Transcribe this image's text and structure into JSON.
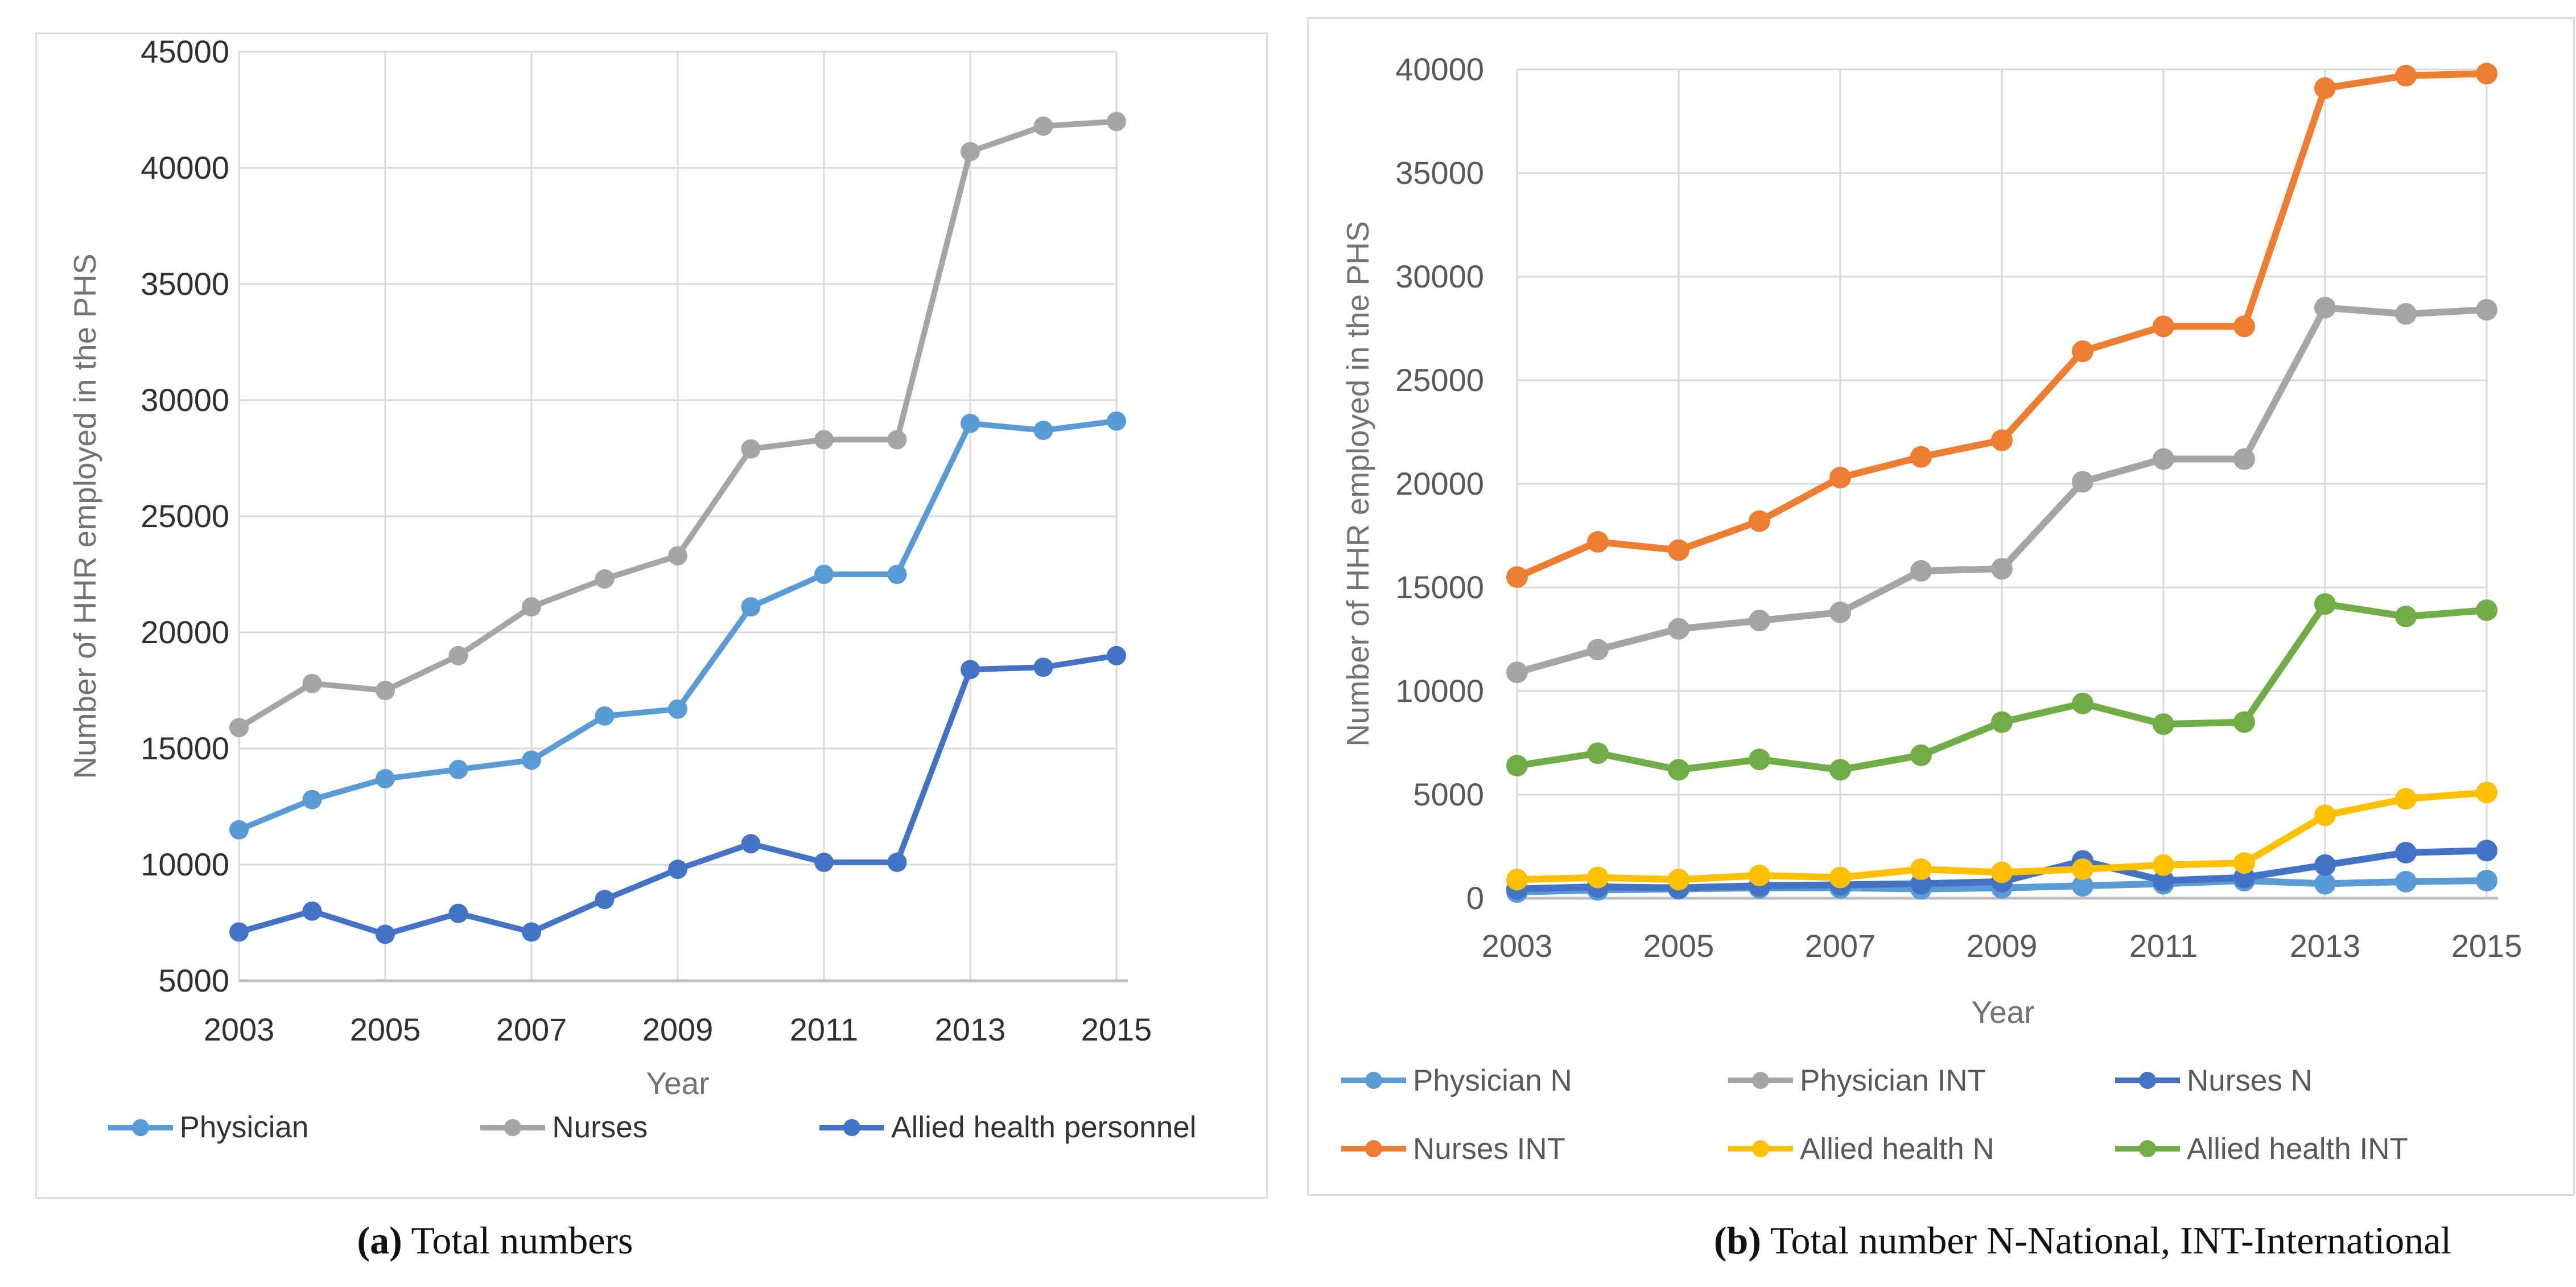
{
  "style": {
    "grid_color": "#D9D9D9",
    "axis_color": "#BFBFBF",
    "axis_title_color": "#757171",
    "tick_label_color_a": "#303030",
    "tick_label_color_b": "#595959",
    "legend_text_color_a": "#333333",
    "legend_text_color_b": "#595959"
  },
  "figure": {
    "captions": [
      {
        "prefix": "(a)",
        "text": " Total numbers"
      },
      {
        "prefix": "(b)",
        "text": " Total number N-National, INT-International"
      }
    ]
  },
  "chart_data": [
    {
      "type": "line",
      "title": "",
      "xlabel": "Year",
      "ylabel": "Number of HHR employed in the PHS",
      "x": [
        2003,
        2004,
        2005,
        2006,
        2007,
        2008,
        2009,
        2010,
        2011,
        2012,
        2013,
        2014,
        2015
      ],
      "x_ticks": [
        2003,
        2005,
        2007,
        2009,
        2011,
        2013,
        2015
      ],
      "ylim": [
        5000,
        45000
      ],
      "ytick_step": 5000,
      "grid": true,
      "legend_position": "bottom",
      "series": [
        {
          "name": "Physician",
          "color": "#5B9BD5",
          "values": [
            11500,
            12800,
            13700,
            14100,
            14500,
            16400,
            16700,
            21100,
            22500,
            22500,
            29000,
            28700,
            29100
          ]
        },
        {
          "name": "Nurses",
          "color": "#A5A5A5",
          "values": [
            15900,
            17800,
            17500,
            19000,
            21100,
            22300,
            23300,
            27900,
            28300,
            28300,
            40700,
            41800,
            42000
          ]
        },
        {
          "name": "Allied health personnel",
          "color": "#4472C4",
          "values": [
            7100,
            8000,
            7000,
            7900,
            7100,
            8500,
            9800,
            10900,
            10100,
            10100,
            18400,
            18500,
            19000
          ]
        }
      ]
    },
    {
      "type": "line",
      "title": "",
      "xlabel": "Year",
      "ylabel": "Number of HHR employed in the PHS",
      "x": [
        2003,
        2004,
        2005,
        2006,
        2007,
        2008,
        2009,
        2010,
        2011,
        2012,
        2013,
        2014,
        2015
      ],
      "x_ticks": [
        2003,
        2005,
        2007,
        2009,
        2011,
        2013,
        2015
      ],
      "ylim": [
        0,
        40000
      ],
      "ytick_step": 5000,
      "grid": true,
      "legend_position": "bottom",
      "series": [
        {
          "name": "Physician N",
          "color": "#5B9BD5",
          "values": [
            300,
            400,
            450,
            500,
            500,
            450,
            500,
            600,
            700,
            850,
            700,
            800,
            850
          ]
        },
        {
          "name": "Physician INT",
          "color": "#A5A5A5",
          "values": [
            10900,
            12000,
            13000,
            13400,
            13800,
            15800,
            15900,
            20100,
            21200,
            21200,
            28500,
            28200,
            28400
          ]
        },
        {
          "name": "Nurses N",
          "color": "#4472C4",
          "values": [
            450,
            550,
            500,
            600,
            650,
            700,
            800,
            1800,
            850,
            1000,
            1600,
            2200,
            2300
          ]
        },
        {
          "name": "Nurses INT",
          "color": "#ED7D31",
          "values": [
            15500,
            17200,
            16800,
            18200,
            20300,
            21300,
            22100,
            26400,
            27600,
            27600,
            39100,
            39700,
            39800
          ]
        },
        {
          "name": "Allied health N",
          "color": "#FFC000",
          "values": [
            900,
            1000,
            900,
            1100,
            1000,
            1400,
            1250,
            1400,
            1600,
            1700,
            4000,
            4800,
            5100
          ]
        },
        {
          "name": "Allied health INT",
          "color": "#70AD47",
          "values": [
            6400,
            7000,
            6200,
            6700,
            6200,
            6900,
            8500,
            9400,
            8400,
            8500,
            14200,
            13600,
            13900
          ]
        }
      ]
    }
  ]
}
